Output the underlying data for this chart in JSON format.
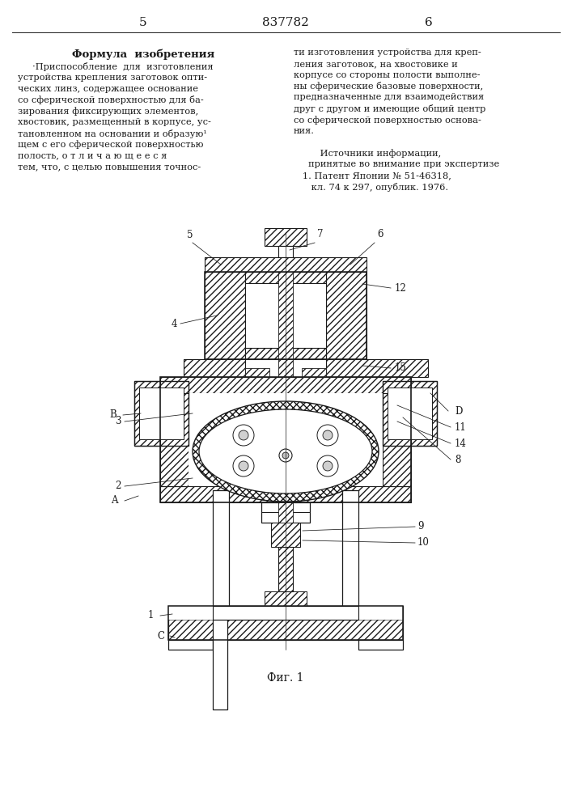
{
  "page_num_left": "5",
  "page_num_center": "837782",
  "page_num_right": "6",
  "section_title": "Формула  изобретения",
  "left_text_lines": [
    "     ·Приспособление  для  изготовления",
    "устройства крепления заготовок опти-",
    "ческих линз, содержащее основание",
    "со сферической поверхностью для ба-",
    "зирования фиксирующих элементов,",
    "хвостовик, размещенный в корпусе, ус-",
    "тановленном на основании и образую¹",
    "щем с его сферической поверхностью",
    "полость, о т л и ч а ю щ е е с я",
    "тем, что, с целью повышения точнос-"
  ],
  "right_text_lines": [
    "ти изготовления устройства для креп-",
    "ления заготовок, на хвостовике и",
    "корпусе со стороны полости выполне-",
    "ны сферические базовые поверхности,",
    "предназначенные для взаимодействия",
    "друг с другом и имеющие общий центр",
    "со сферической поверхностью основа-",
    "ния.",
    "",
    "         Источники информации,",
    "     принятые во внимание при экспертизе",
    "   1. Патент Японии № 51-46318,",
    "      кл. 74 к 297, опублик. 1976."
  ],
  "fig_label": "Фиг. 1",
  "bg_color": "#ffffff",
  "text_color": "#1a1a1a",
  "line_color": "#1a1a1a",
  "hatch_lw": 0.4
}
